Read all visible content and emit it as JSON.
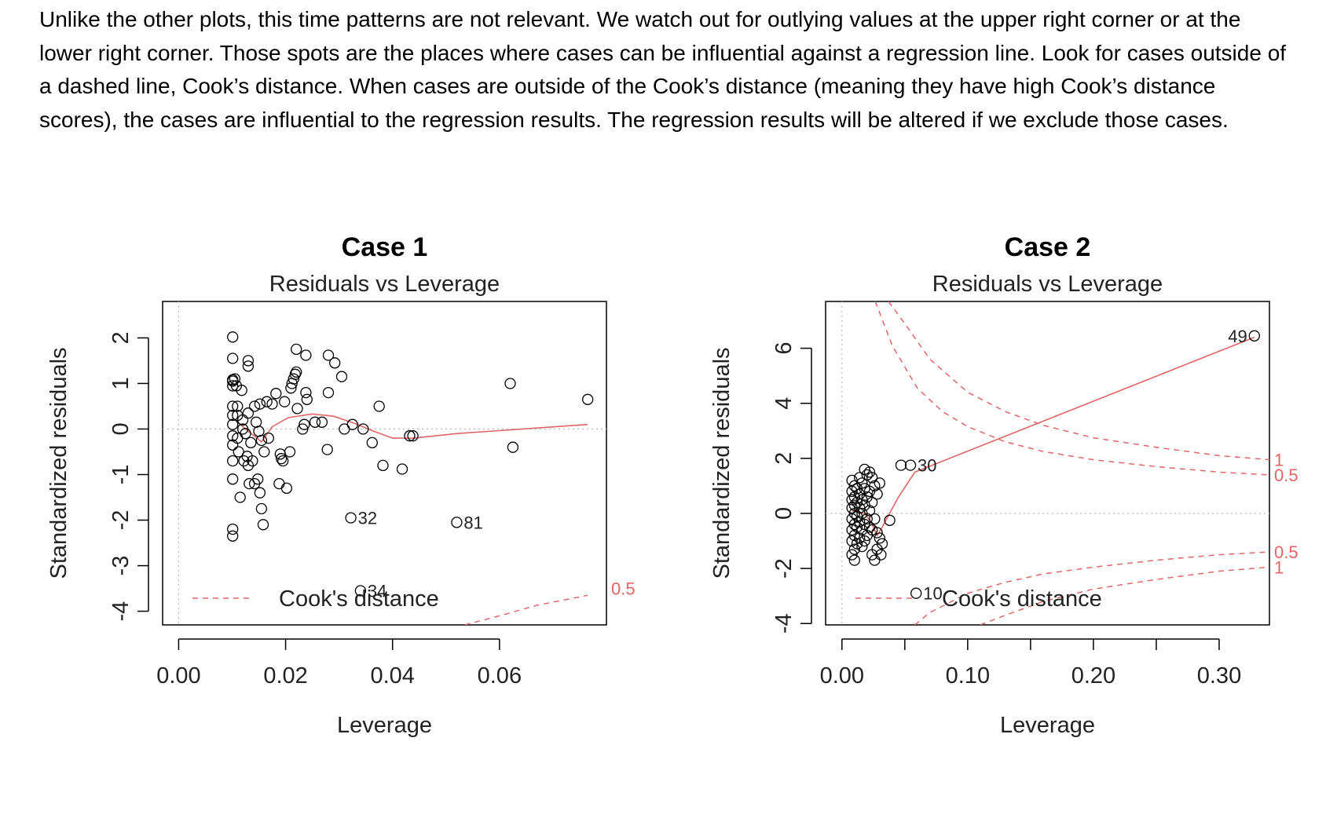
{
  "intro_text": "Unlike the other plots, this time patterns are not relevant. We watch out for outlying values at the upper right corner or at the lower right corner. Those spots are the places where cases can be influential against a regression line. Look for cases outside of a dashed line, Cook’s distance. When cases are outside of the Cook’s distance (meaning they have high Cook’s distance scores), the cases are influential to the regression results. The regression results will be altered if we exclude those cases.",
  "colors": {
    "points": "#000000",
    "smooth": "#e06666",
    "cooks": "#e06666",
    "frame": "#000000",
    "guide": "#bbbbbb"
  },
  "chart_data": [
    {
      "type": "scatter",
      "title": "Case 1",
      "subtitle": "Residuals vs Leverage",
      "xlabel": "Leverage",
      "ylabel": "Standardized residuals",
      "xlim": [
        -0.003,
        0.08
      ],
      "ylim": [
        -4.3,
        2.8
      ],
      "xticks": [
        0,
        0.02,
        0.04,
        0.06
      ],
      "xtick_labels": [
        "0.00",
        "0.02",
        "0.04",
        "0.06"
      ],
      "yticks": [
        -4,
        -3,
        -2,
        -1,
        0,
        1,
        2
      ],
      "ytick_labels": [
        "-4",
        "-3",
        "-2",
        "-1",
        "0",
        "1",
        "2"
      ],
      "legend": {
        "label": "Cook's distance",
        "placement": "bottom-left"
      },
      "points": [
        [
          0.0101,
          2.02
        ],
        [
          0.0101,
          1.55
        ],
        [
          0.0101,
          1.08
        ],
        [
          0.0101,
          1.05
        ],
        [
          0.0101,
          0.95
        ],
        [
          0.0101,
          0.5
        ],
        [
          0.0101,
          0.3
        ],
        [
          0.0101,
          0.1
        ],
        [
          0.0101,
          -0.15
        ],
        [
          0.0101,
          -0.35
        ],
        [
          0.0101,
          -0.7
        ],
        [
          0.0101,
          -1.1
        ],
        [
          0.0101,
          -2.2
        ],
        [
          0.0101,
          -2.35
        ],
        [
          0.0105,
          1.1
        ],
        [
          0.0108,
          0.95
        ],
        [
          0.011,
          0.5
        ],
        [
          0.011,
          0.3
        ],
        [
          0.011,
          -0.2
        ],
        [
          0.0112,
          -0.5
        ],
        [
          0.0115,
          -1.5
        ],
        [
          0.0118,
          0.85
        ],
        [
          0.012,
          0.2
        ],
        [
          0.012,
          0.0
        ],
        [
          0.0122,
          -0.7
        ],
        [
          0.0125,
          -0.1
        ],
        [
          0.0128,
          -0.6
        ],
        [
          0.013,
          1.5
        ],
        [
          0.013,
          1.38
        ],
        [
          0.013,
          0.35
        ],
        [
          0.013,
          -0.8
        ],
        [
          0.0132,
          -1.2
        ],
        [
          0.0135,
          -0.3
        ],
        [
          0.0138,
          -0.7
        ],
        [
          0.0142,
          -1.2
        ],
        [
          0.0142,
          0.5
        ],
        [
          0.0145,
          0.15
        ],
        [
          0.0148,
          -1.1
        ],
        [
          0.015,
          -0.05
        ],
        [
          0.0152,
          0.55
        ],
        [
          0.0152,
          -1.4
        ],
        [
          0.0155,
          -0.25
        ],
        [
          0.0155,
          -1.75
        ],
        [
          0.0158,
          -2.1
        ],
        [
          0.016,
          -0.5
        ],
        [
          0.0165,
          0.6
        ],
        [
          0.0168,
          -0.2
        ],
        [
          0.0175,
          0.55
        ],
        [
          0.0182,
          0.78
        ],
        [
          0.0188,
          -1.2
        ],
        [
          0.019,
          -0.55
        ],
        [
          0.0192,
          -0.65
        ],
        [
          0.0195,
          -0.7
        ],
        [
          0.0198,
          0.6
        ],
        [
          0.0202,
          -1.3
        ],
        [
          0.0208,
          -0.5
        ],
        [
          0.021,
          0.9
        ],
        [
          0.0212,
          1.0
        ],
        [
          0.0215,
          1.1
        ],
        [
          0.0218,
          1.2
        ],
        [
          0.022,
          1.25
        ],
        [
          0.022,
          1.75
        ],
        [
          0.0222,
          0.45
        ],
        [
          0.0232,
          0.0
        ],
        [
          0.0235,
          0.1
        ],
        [
          0.0238,
          0.8
        ],
        [
          0.0238,
          1.62
        ],
        [
          0.024,
          0.65
        ],
        [
          0.0255,
          0.15
        ],
        [
          0.0268,
          0.15
        ],
        [
          0.0278,
          -0.45
        ],
        [
          0.028,
          0.8
        ],
        [
          0.028,
          1.62
        ],
        [
          0.0292,
          1.45
        ],
        [
          0.0305,
          1.15
        ],
        [
          0.031,
          0.0
        ],
        [
          0.0325,
          0.1
        ],
        [
          0.0322,
          -1.95
        ],
        [
          0.0345,
          0.0
        ],
        [
          0.0362,
          -0.3
        ],
        [
          0.0375,
          0.5
        ],
        [
          0.0382,
          -0.8
        ],
        [
          0.0418,
          -0.88
        ],
        [
          0.0432,
          -0.15
        ],
        [
          0.0438,
          -0.15
        ],
        [
          0.052,
          -2.05
        ],
        [
          0.062,
          1.0
        ],
        [
          0.0625,
          -0.4
        ],
        [
          0.0765,
          0.65
        ],
        [
          0.034,
          -3.55
        ]
      ],
      "point_labels": [
        {
          "x": 0.0322,
          "y": -1.95,
          "text": "32"
        },
        {
          "x": 0.052,
          "y": -2.05,
          "text": "81"
        },
        {
          "x": 0.034,
          "y": -3.55,
          "text": "34"
        }
      ],
      "smooth": [
        [
          0.0101,
          0.25
        ],
        [
          0.0125,
          0.0
        ],
        [
          0.0155,
          -0.28
        ],
        [
          0.0175,
          0.05
        ],
        [
          0.0205,
          0.25
        ],
        [
          0.025,
          0.33
        ],
        [
          0.029,
          0.28
        ],
        [
          0.033,
          0.12
        ],
        [
          0.0365,
          -0.05
        ],
        [
          0.04,
          -0.2
        ],
        [
          0.044,
          -0.2
        ],
        [
          0.052,
          -0.1
        ],
        [
          0.0765,
          0.1
        ]
      ],
      "cooks_curves": [
        {
          "level": "0.5",
          "points": [
            [
              0.0535,
              -4.3
            ],
            [
              0.06,
              -4.1
            ],
            [
              0.067,
              -3.87
            ],
            [
              0.0765,
              -3.65
            ]
          ]
        }
      ],
      "cooks_labels": [
        {
          "text": "0.5",
          "y": -3.5
        }
      ]
    },
    {
      "type": "scatter",
      "title": "Case 2",
      "subtitle": "Residuals vs Leverage",
      "xlabel": "Leverage",
      "ylabel": "Standardized residuals",
      "xlim": [
        -0.013,
        0.34
      ],
      "ylim": [
        -4.05,
        7.7
      ],
      "xticks": [
        0,
        0.05,
        0.1,
        0.15,
        0.2,
        0.25,
        0.3
      ],
      "xtick_labels": [
        "0.00",
        "",
        "0.10",
        "",
        "0.20",
        "",
        "0.30"
      ],
      "yticks": [
        -4,
        -2,
        0,
        2,
        4,
        6
      ],
      "ytick_labels": [
        "-4",
        "-2",
        "0",
        "2",
        "4",
        "6"
      ],
      "legend": {
        "label": "Cook's distance",
        "placement": "bottom-left"
      },
      "points": [
        [
          0.008,
          1.2
        ],
        [
          0.008,
          0.8
        ],
        [
          0.008,
          0.5
        ],
        [
          0.008,
          0.2
        ],
        [
          0.008,
          -0.2
        ],
        [
          0.008,
          -0.6
        ],
        [
          0.008,
          -1.0
        ],
        [
          0.008,
          -1.5
        ],
        [
          0.01,
          1.0
        ],
        [
          0.01,
          0.6
        ],
        [
          0.01,
          0.3
        ],
        [
          0.01,
          0.0
        ],
        [
          0.01,
          -0.4
        ],
        [
          0.01,
          -0.8
        ],
        [
          0.01,
          -1.3
        ],
        [
          0.01,
          -1.7
        ],
        [
          0.012,
          0.9
        ],
        [
          0.012,
          0.4
        ],
        [
          0.012,
          -0.1
        ],
        [
          0.012,
          -0.5
        ],
        [
          0.012,
          -1.1
        ],
        [
          0.014,
          1.3
        ],
        [
          0.014,
          0.7
        ],
        [
          0.014,
          0.2
        ],
        [
          0.014,
          -0.3
        ],
        [
          0.014,
          -0.9
        ],
        [
          0.016,
          1.1
        ],
        [
          0.016,
          0.5
        ],
        [
          0.016,
          0.0
        ],
        [
          0.016,
          -0.6
        ],
        [
          0.016,
          -1.2
        ],
        [
          0.018,
          1.6
        ],
        [
          0.018,
          0.9
        ],
        [
          0.018,
          0.3
        ],
        [
          0.018,
          -0.4
        ],
        [
          0.018,
          -1.0
        ],
        [
          0.02,
          1.4
        ],
        [
          0.02,
          0.6
        ],
        [
          0.02,
          -0.2
        ],
        [
          0.02,
          -0.8
        ],
        [
          0.022,
          1.5
        ],
        [
          0.022,
          0.8
        ],
        [
          0.022,
          0.1
        ],
        [
          0.022,
          -0.5
        ],
        [
          0.024,
          1.3
        ],
        [
          0.024,
          0.4
        ],
        [
          0.024,
          -0.6
        ],
        [
          0.024,
          -1.5
        ],
        [
          0.026,
          1.0
        ],
        [
          0.026,
          -0.2
        ],
        [
          0.026,
          -1.7
        ],
        [
          0.028,
          0.7
        ],
        [
          0.028,
          -0.7
        ],
        [
          0.028,
          -1.3
        ],
        [
          0.03,
          1.1
        ],
        [
          0.03,
          -0.9
        ],
        [
          0.031,
          -1.5
        ],
        [
          0.032,
          -1.1
        ],
        [
          0.038,
          -0.25
        ],
        [
          0.047,
          1.75
        ],
        [
          0.059,
          -2.9
        ],
        [
          0.0545,
          1.75
        ],
        [
          0.328,
          6.45
        ]
      ],
      "point_labels": [
        {
          "x": 0.0545,
          "y": 1.75,
          "text": "30"
        },
        {
          "x": 0.059,
          "y": -2.9,
          "text": "10"
        },
        {
          "x": 0.328,
          "y": 6.45,
          "text": "49"
        }
      ],
      "smooth": [
        [
          0.008,
          0.1
        ],
        [
          0.013,
          0.05
        ],
        [
          0.018,
          0.0
        ],
        [
          0.023,
          -0.3
        ],
        [
          0.028,
          -0.8
        ],
        [
          0.032,
          -0.5
        ],
        [
          0.045,
          0.6
        ],
        [
          0.058,
          1.5
        ],
        [
          0.328,
          6.4
        ]
      ],
      "cooks_curves": [
        {
          "level": "0.5",
          "points": [
            [
              0.0265,
              7.7
            ],
            [
              0.04,
              6.1
            ],
            [
              0.06,
              4.55
            ],
            [
              0.08,
              3.7
            ],
            [
              0.1,
              3.15
            ],
            [
              0.13,
              2.6
            ],
            [
              0.16,
              2.25
            ],
            [
              0.2,
              1.95
            ],
            [
              0.25,
              1.7
            ],
            [
              0.3,
              1.5
            ],
            [
              0.34,
              1.4
            ]
          ]
        },
        {
          "level": "1",
          "points": [
            [
              0.037,
              7.7
            ],
            [
              0.05,
              6.9
            ],
            [
              0.07,
              5.6
            ],
            [
              0.1,
              4.4
            ],
            [
              0.13,
              3.7
            ],
            [
              0.16,
              3.2
            ],
            [
              0.2,
              2.75
            ],
            [
              0.25,
              2.4
            ],
            [
              0.3,
              2.1
            ],
            [
              0.34,
              1.95
            ]
          ]
        },
        {
          "level": "0.5",
          "points": [
            [
              0.058,
              -4.05
            ],
            [
              0.07,
              -3.6
            ],
            [
              0.1,
              -2.9
            ],
            [
              0.13,
              -2.5
            ],
            [
              0.16,
              -2.2
            ],
            [
              0.2,
              -1.95
            ],
            [
              0.25,
              -1.7
            ],
            [
              0.3,
              -1.5
            ],
            [
              0.34,
              -1.4
            ]
          ]
        },
        {
          "level": "1",
          "points": [
            [
              0.11,
              -4.05
            ],
            [
              0.13,
              -3.7
            ],
            [
              0.16,
              -3.2
            ],
            [
              0.2,
              -2.75
            ],
            [
              0.25,
              -2.4
            ],
            [
              0.3,
              -2.1
            ],
            [
              0.34,
              -1.95
            ]
          ]
        }
      ],
      "cooks_labels": [
        {
          "text": "1",
          "y": 1.95
        },
        {
          "text": "0.5",
          "y": 1.4
        },
        {
          "text": "0.5",
          "y": -1.4
        },
        {
          "text": "1",
          "y": -1.95
        }
      ]
    }
  ]
}
